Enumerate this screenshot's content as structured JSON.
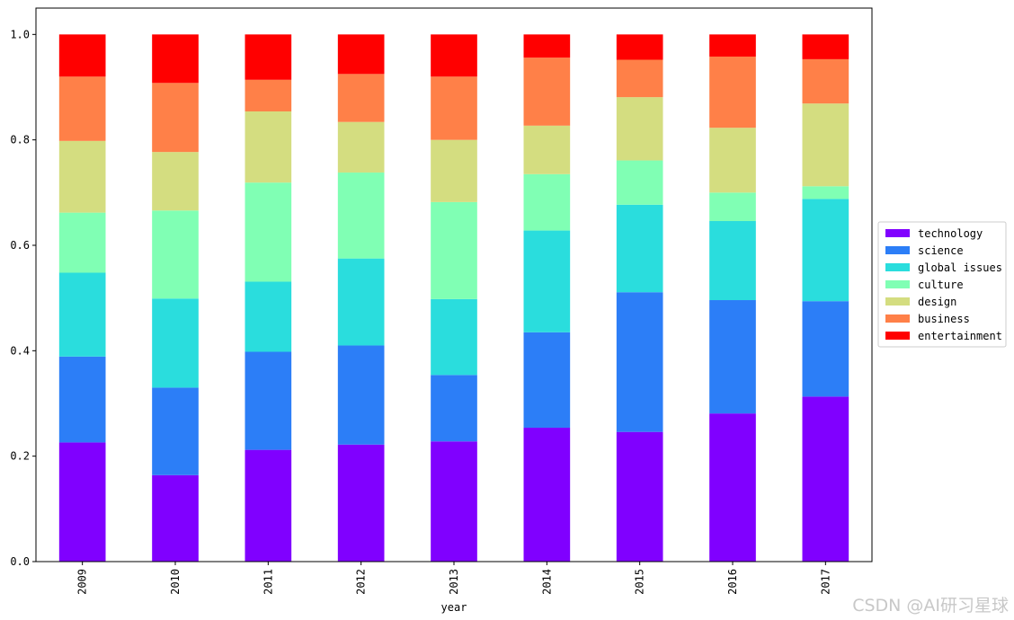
{
  "watermark": "CSDN @AI研习星球",
  "chart_data": {
    "type": "bar",
    "stacked": true,
    "xlabel": "year",
    "ylabel": "",
    "ylim": [
      0,
      1.05
    ],
    "yticks": [
      "0.0",
      "0.2",
      "0.4",
      "0.6",
      "0.8",
      "1.0"
    ],
    "grid": false,
    "legend_position": "right",
    "categories": [
      "2009",
      "2010",
      "2011",
      "2012",
      "2013",
      "2014",
      "2015",
      "2016",
      "2017"
    ],
    "series": [
      {
        "name": "technology",
        "color": "#8000ff",
        "values": [
          0.226,
          0.164,
          0.212,
          0.222,
          0.228,
          0.254,
          0.246,
          0.281,
          0.313
        ]
      },
      {
        "name": "science",
        "color": "#2c7ef7",
        "values": [
          0.163,
          0.166,
          0.186,
          0.188,
          0.126,
          0.181,
          0.265,
          0.215,
          0.181
        ]
      },
      {
        "name": "global issues",
        "color": "#2adddd",
        "values": [
          0.159,
          0.169,
          0.133,
          0.165,
          0.144,
          0.193,
          0.166,
          0.15,
          0.194
        ]
      },
      {
        "name": "culture",
        "color": "#80ffb4",
        "values": [
          0.114,
          0.167,
          0.188,
          0.163,
          0.184,
          0.107,
          0.084,
          0.054,
          0.024
        ]
      },
      {
        "name": "design",
        "color": "#d4dd80",
        "values": [
          0.136,
          0.111,
          0.135,
          0.096,
          0.118,
          0.092,
          0.12,
          0.123,
          0.157
        ]
      },
      {
        "name": "business",
        "color": "#ff8048",
        "values": [
          0.122,
          0.131,
          0.06,
          0.091,
          0.12,
          0.129,
          0.071,
          0.135,
          0.084
        ]
      },
      {
        "name": "entertainment",
        "color": "#ff0000",
        "values": [
          0.08,
          0.092,
          0.086,
          0.075,
          0.08,
          0.044,
          0.048,
          0.042,
          0.047
        ]
      }
    ]
  }
}
